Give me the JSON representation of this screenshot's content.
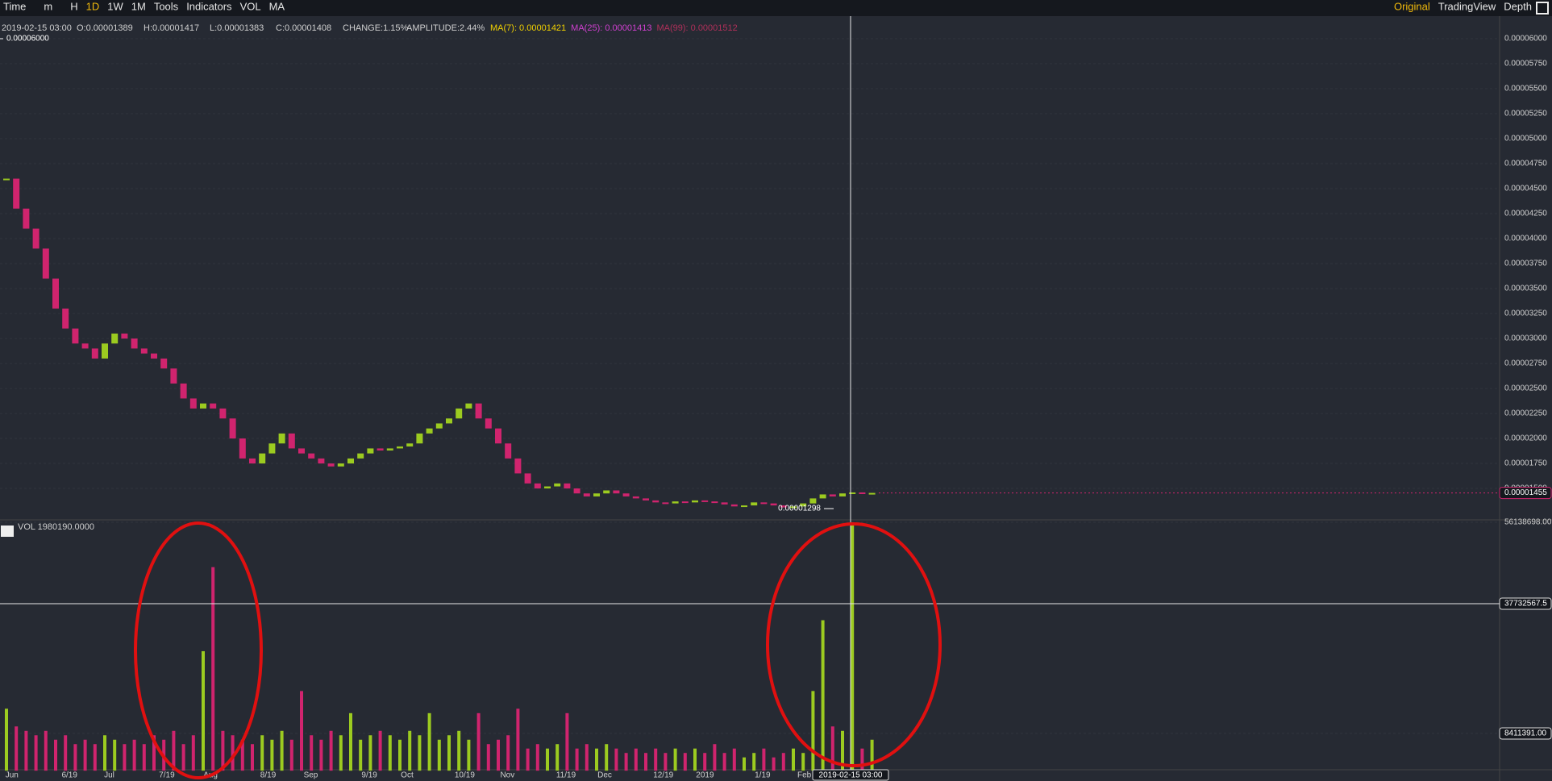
{
  "toolbar": {
    "left": [
      "Time",
      "m",
      "H",
      "1D",
      "1W",
      "1M",
      "Tools",
      "Indicators",
      "VOL",
      "MA"
    ],
    "right": [
      "Original",
      "TradingView",
      "Depth"
    ]
  },
  "info": {
    "time": "2019-02-15 03:00",
    "open": "O:0.00001389",
    "high": "H:0.00001417",
    "low": "L:0.00001383",
    "close": "C:0.00001408",
    "change": "CHANGE:1.15%",
    "amplitude": "AMPLITUDE:2.44%",
    "ma7": "MA(7): 0.00001421",
    "ma25": "MA(25): 0.00001413",
    "ma99": "MA(99): 0.00001512"
  },
  "chart_data": {
    "type": "candlestick",
    "price_ticks": [
      {
        "value": 6e-05,
        "label": "0.00006000"
      },
      {
        "value": 5.75e-05,
        "label": "0.00005750"
      },
      {
        "value": 5.5e-05,
        "label": "0.00005500"
      },
      {
        "value": 5.25e-05,
        "label": "0.00005250"
      },
      {
        "value": 5e-05,
        "label": "0.00005000"
      },
      {
        "value": 4.75e-05,
        "label": "0.00004750"
      },
      {
        "value": 4.5e-05,
        "label": "0.00004500"
      },
      {
        "value": 4.25e-05,
        "label": "0.00004250"
      },
      {
        "value": 4e-05,
        "label": "0.00004000"
      },
      {
        "value": 3.75e-05,
        "label": "0.00003750"
      },
      {
        "value": 3.5e-05,
        "label": "0.00003500"
      },
      {
        "value": 3.25e-05,
        "label": "0.00003250"
      },
      {
        "value": 3e-05,
        "label": "0.00003000"
      },
      {
        "value": 2.75e-05,
        "label": "0.00002750"
      },
      {
        "value": 2.5e-05,
        "label": "0.00002500"
      },
      {
        "value": 2.25e-05,
        "label": "0.00002250"
      },
      {
        "value": 2e-05,
        "label": "0.00002000"
      },
      {
        "value": 1.75e-05,
        "label": "0.00001750"
      },
      {
        "value": 1.5e-05,
        "label": "0.00001500"
      }
    ],
    "max_marker": {
      "value": 6e-05,
      "label": "0.00006000"
    },
    "min_marker": {
      "value": 1.298e-05,
      "label": "0.00001298"
    },
    "last_price": {
      "value": 1.455e-05,
      "label": "0.00001455"
    },
    "volume_label": "VOL 1980190.0000",
    "volume_ticks": [
      {
        "value": 56138698,
        "label": "56138698.00"
      },
      {
        "value": 37732567.5,
        "label": "37732567.5"
      },
      {
        "value": 8411391,
        "label": "8411391.00"
      }
    ],
    "x_labels": [
      "Jun",
      "6/19",
      "Jul",
      "7/19",
      "Aug",
      "8/19",
      "Sep",
      "9/19",
      "Oct",
      "10/19",
      "Nov",
      "11/19",
      "Dec",
      "12/19",
      "2019",
      "1/19",
      "Feb"
    ],
    "crosshair_label": "2019-02-15 03:00",
    "close": [
      4.6e-05,
      4.3e-05,
      4.1e-05,
      3.9e-05,
      3.6e-05,
      3.3e-05,
      3.1e-05,
      2.95e-05,
      2.9e-05,
      2.8e-05,
      2.95e-05,
      3.05e-05,
      3e-05,
      2.9e-05,
      2.85e-05,
      2.8e-05,
      2.7e-05,
      2.55e-05,
      2.4e-05,
      2.3e-05,
      2.35e-05,
      2.3e-05,
      2.2e-05,
      2e-05,
      1.8e-05,
      1.75e-05,
      1.85e-05,
      1.95e-05,
      2.05e-05,
      1.9e-05,
      1.85e-05,
      1.8e-05,
      1.75e-05,
      1.72e-05,
      1.75e-05,
      1.8e-05,
      1.85e-05,
      1.9e-05,
      1.88e-05,
      1.9e-05,
      1.92e-05,
      1.95e-05,
      2.05e-05,
      2.1e-05,
      2.15e-05,
      2.2e-05,
      2.3e-05,
      2.35e-05,
      2.2e-05,
      2.1e-05,
      1.95e-05,
      1.8e-05,
      1.65e-05,
      1.55e-05,
      1.5e-05,
      1.52e-05,
      1.55e-05,
      1.5e-05,
      1.45e-05,
      1.42e-05,
      1.45e-05,
      1.48e-05,
      1.45e-05,
      1.42e-05,
      1.4e-05,
      1.38e-05,
      1.36e-05,
      1.35e-05,
      1.37e-05,
      1.36e-05,
      1.38e-05,
      1.37e-05,
      1.36e-05,
      1.34e-05,
      1.32e-05,
      1.33e-05,
      1.36e-05,
      1.35e-05,
      1.33e-05,
      1.31e-05,
      1.32e-05,
      1.35e-05,
      1.4e-05,
      1.44e-05,
      1.42e-05,
      1.45e-05,
      1.46e-05,
      1.455e-05,
      1.455e-05
    ],
    "volume": [
      14000000,
      10000000,
      9000000,
      8000000,
      9000000,
      7000000,
      8000000,
      6000000,
      7000000,
      6000000,
      8000000,
      7000000,
      6000000,
      7000000,
      6000000,
      8000000,
      7000000,
      9000000,
      6000000,
      8000000,
      27000000,
      46000000,
      9000000,
      8000000,
      7000000,
      6000000,
      8000000,
      7000000,
      9000000,
      7000000,
      18000000,
      8000000,
      7000000,
      9000000,
      8000000,
      13000000,
      7000000,
      8000000,
      9000000,
      8000000,
      7000000,
      9000000,
      8000000,
      13000000,
      7000000,
      8000000,
      9000000,
      7000000,
      13000000,
      6000000,
      7000000,
      8000000,
      14000000,
      5000000,
      6000000,
      5000000,
      6000000,
      13000000,
      5000000,
      6000000,
      5000000,
      6000000,
      5000000,
      4000000,
      5000000,
      4000000,
      5000000,
      4000000,
      5000000,
      4000000,
      5000000,
      4000000,
      6000000,
      4000000,
      5000000,
      3000000,
      4000000,
      5000000,
      3000000,
      4000000,
      5000000,
      4000000,
      18000000,
      34000000,
      10000000,
      9000000,
      56138698,
      5000000,
      7000000
    ]
  }
}
